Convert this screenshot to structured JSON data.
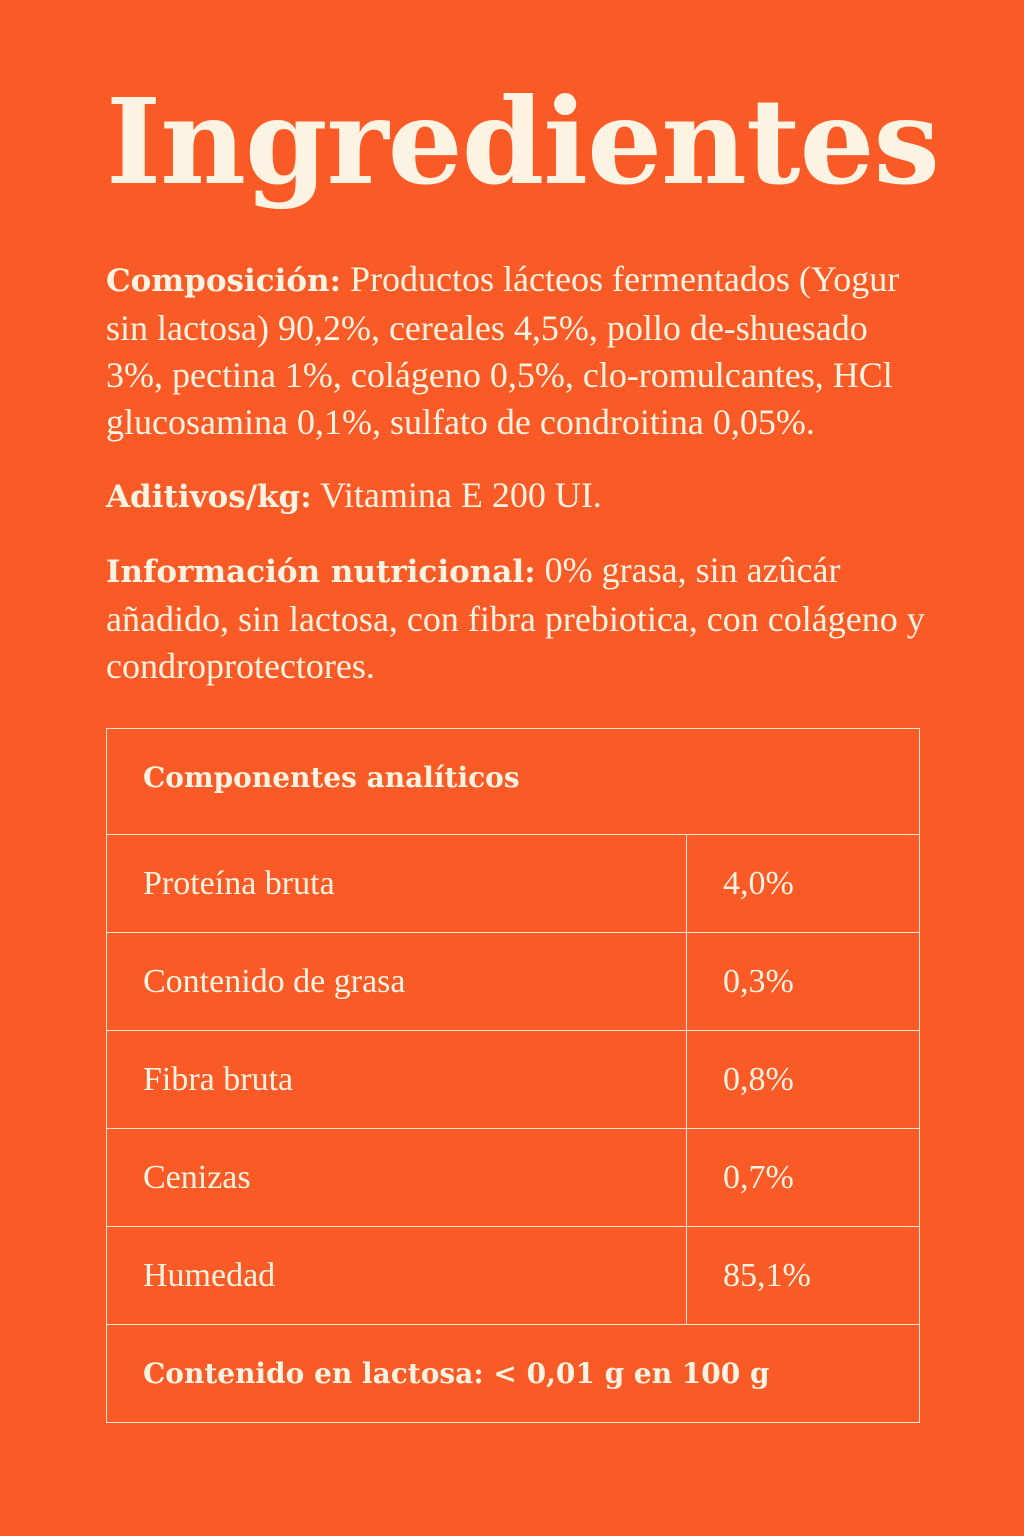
{
  "title": "Ingredientes",
  "composicion": {
    "label": "Composición:",
    "text": "Productos lácteos fermentados (Yogur sin lactosa) 90,2%, cereales 4,5%, pollo de-shuesado 3%, pectina 1%, colágeno 0,5%, clo-romulcantes, HCl glucosamina 0,1%, sulfato de condroitina 0,05%."
  },
  "aditivos": {
    "label": "Aditivos/kg:",
    "text": "Vitamina E 200 UI."
  },
  "informacion": {
    "label": "Información nutricional:",
    "text": "0% grasa, sin azûcár añadido, sin lactosa, con fibra prebiotica, con colágeno y condroprotectores."
  },
  "table": {
    "header": "Componentes analíticos",
    "rows": [
      {
        "name": "Proteína bruta",
        "value": "4,0%"
      },
      {
        "name": "Contenido de grasa",
        "value": "0,3%"
      },
      {
        "name": "Fibra bruta",
        "value": "0,8%"
      },
      {
        "name": "Cenizas",
        "value": "0,7%"
      },
      {
        "name": "Humedad",
        "value": "85,1%"
      }
    ],
    "footer": "Contenido en lactosa: < 0,01 g en 100 g"
  },
  "colors": {
    "background": "#fa5b26",
    "text": "#fdf3e3"
  }
}
